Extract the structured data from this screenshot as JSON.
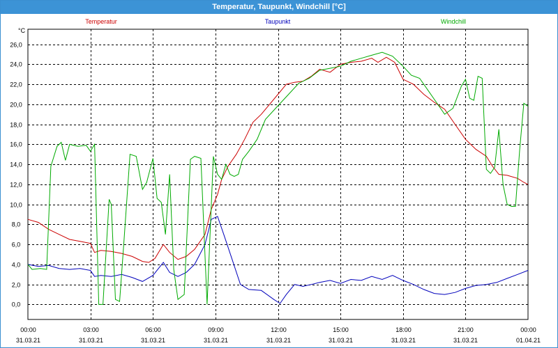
{
  "window": {
    "title": "Temperatur, Taupunkt, Windchill [°C]"
  },
  "chart_data": {
    "type": "line",
    "title": "Temperatur, Taupunkt, Windchill [°C]",
    "ylabel": "°C",
    "ylim": [
      -1.5,
      27.5
    ],
    "yticks": [
      "0,0",
      "2,0",
      "4,0",
      "6,0",
      "8,0",
      "10,0",
      "12,0",
      "14,0",
      "16,0",
      "18,0",
      "20,0",
      "22,0",
      "24,0",
      "26,0"
    ],
    "ytick_values": [
      0,
      2,
      4,
      6,
      8,
      10,
      12,
      14,
      16,
      18,
      20,
      22,
      24,
      26
    ],
    "xlim": [
      0,
      24
    ],
    "xticks": [
      {
        "time": "00:00",
        "date": "31.03.21",
        "h": 0
      },
      {
        "time": "03:00",
        "date": "31.03.21",
        "h": 3
      },
      {
        "time": "06:00",
        "date": "31.03.21",
        "h": 6
      },
      {
        "time": "09:00",
        "date": "31.03.21",
        "h": 9
      },
      {
        "time": "12:00",
        "date": "31.03.21",
        "h": 12
      },
      {
        "time": "15:00",
        "date": "31.03.21",
        "h": 15
      },
      {
        "time": "18:00",
        "date": "31.03.21",
        "h": 18
      },
      {
        "time": "21:00",
        "date": "31.03.21",
        "h": 21
      },
      {
        "time": "00:00",
        "date": "01.04.21",
        "h": 24
      }
    ],
    "grid": true,
    "legend_position": "top",
    "series": [
      {
        "name": "Temperatur",
        "color": "#cc0000",
        "points": [
          [
            0,
            8.5
          ],
          [
            0.5,
            8.2
          ],
          [
            1.0,
            7.5
          ],
          [
            1.5,
            7.0
          ],
          [
            2.0,
            6.5
          ],
          [
            2.5,
            6.3
          ],
          [
            3.0,
            6.1
          ],
          [
            3.2,
            5.2
          ],
          [
            3.5,
            5.4
          ],
          [
            4.0,
            5.3
          ],
          [
            4.5,
            5.1
          ],
          [
            5.0,
            4.8
          ],
          [
            5.5,
            4.3
          ],
          [
            5.8,
            4.2
          ],
          [
            6.1,
            4.6
          ],
          [
            6.5,
            6.0
          ],
          [
            6.8,
            5.2
          ],
          [
            7.2,
            4.5
          ],
          [
            7.6,
            4.8
          ],
          [
            8.0,
            5.5
          ],
          [
            8.5,
            7.0
          ],
          [
            8.8,
            9.5
          ],
          [
            9.1,
            11.0
          ],
          [
            9.3,
            12.5
          ],
          [
            9.6,
            13.8
          ],
          [
            10.0,
            15.0
          ],
          [
            10.4,
            16.5
          ],
          [
            10.8,
            18.2
          ],
          [
            11.2,
            19.0
          ],
          [
            11.6,
            20.0
          ],
          [
            12.0,
            21.0
          ],
          [
            12.4,
            22.0
          ],
          [
            12.8,
            22.2
          ],
          [
            13.2,
            22.3
          ],
          [
            13.6,
            22.8
          ],
          [
            14.0,
            23.5
          ],
          [
            14.5,
            23.2
          ],
          [
            15.0,
            24.0
          ],
          [
            15.5,
            24.2
          ],
          [
            16.0,
            24.3
          ],
          [
            16.5,
            24.6
          ],
          [
            16.8,
            24.2
          ],
          [
            17.2,
            24.7
          ],
          [
            17.6,
            24.2
          ],
          [
            18.0,
            22.5
          ],
          [
            18.5,
            22.0
          ],
          [
            19.0,
            21.0
          ],
          [
            19.5,
            20.2
          ],
          [
            20.0,
            19.5
          ],
          [
            20.5,
            18.0
          ],
          [
            21.0,
            16.5
          ],
          [
            21.5,
            15.5
          ],
          [
            22.0,
            14.8
          ],
          [
            22.3,
            13.8
          ],
          [
            22.6,
            13.0
          ],
          [
            23.0,
            12.9
          ],
          [
            23.5,
            12.6
          ],
          [
            23.8,
            12.2
          ],
          [
            24.0,
            12.0
          ]
        ]
      },
      {
        "name": "Taupunkt",
        "color": "#0000bb",
        "points": [
          [
            0,
            4.0
          ],
          [
            0.5,
            3.8
          ],
          [
            1.0,
            3.9
          ],
          [
            1.5,
            3.6
          ],
          [
            2.0,
            3.5
          ],
          [
            2.5,
            3.6
          ],
          [
            3.0,
            3.4
          ],
          [
            3.2,
            2.8
          ],
          [
            3.5,
            2.9
          ],
          [
            4.0,
            2.8
          ],
          [
            4.5,
            3.0
          ],
          [
            5.0,
            2.7
          ],
          [
            5.5,
            2.3
          ],
          [
            6.0,
            2.9
          ],
          [
            6.5,
            4.2
          ],
          [
            6.8,
            3.2
          ],
          [
            7.2,
            2.8
          ],
          [
            7.6,
            3.2
          ],
          [
            8.0,
            4.0
          ],
          [
            8.5,
            6.0
          ],
          [
            8.8,
            8.5
          ],
          [
            9.1,
            8.8
          ],
          [
            9.4,
            7.0
          ],
          [
            9.8,
            4.5
          ],
          [
            10.2,
            2.0
          ],
          [
            10.6,
            1.5
          ],
          [
            11.2,
            1.4
          ],
          [
            11.8,
            0.5
          ],
          [
            12.1,
            0.1
          ],
          [
            12.4,
            1.0
          ],
          [
            12.8,
            2.0
          ],
          [
            13.2,
            1.8
          ],
          [
            13.6,
            2.0
          ],
          [
            14.0,
            2.2
          ],
          [
            14.5,
            2.4
          ],
          [
            15.0,
            2.1
          ],
          [
            15.5,
            2.5
          ],
          [
            16.0,
            2.4
          ],
          [
            16.5,
            2.8
          ],
          [
            17.0,
            2.5
          ],
          [
            17.5,
            2.9
          ],
          [
            18.0,
            2.4
          ],
          [
            18.5,
            2.0
          ],
          [
            19.0,
            1.5
          ],
          [
            19.5,
            1.1
          ],
          [
            20.0,
            1.0
          ],
          [
            20.5,
            1.2
          ],
          [
            21.0,
            1.6
          ],
          [
            21.5,
            1.9
          ],
          [
            22.0,
            2.0
          ],
          [
            22.5,
            2.2
          ],
          [
            23.0,
            2.6
          ],
          [
            23.5,
            3.0
          ],
          [
            24.0,
            3.4
          ]
        ]
      },
      {
        "name": "Windchill",
        "color": "#00aa00",
        "points": [
          [
            0,
            4.0
          ],
          [
            0.2,
            3.5
          ],
          [
            0.6,
            3.6
          ],
          [
            0.9,
            3.5
          ],
          [
            1.1,
            13.8
          ],
          [
            1.4,
            15.8
          ],
          [
            1.6,
            16.2
          ],
          [
            1.8,
            14.4
          ],
          [
            2.0,
            16.0
          ],
          [
            2.4,
            15.8
          ],
          [
            2.8,
            15.9
          ],
          [
            3.0,
            15.3
          ],
          [
            3.2,
            16.0
          ],
          [
            3.4,
            0.0
          ],
          [
            3.6,
            0.0
          ],
          [
            3.9,
            10.5
          ],
          [
            4.0,
            10.0
          ],
          [
            4.2,
            0.5
          ],
          [
            4.4,
            0.3
          ],
          [
            4.6,
            6.0
          ],
          [
            4.9,
            15.0
          ],
          [
            5.2,
            14.8
          ],
          [
            5.5,
            11.5
          ],
          [
            5.7,
            12.2
          ],
          [
            6.0,
            14.6
          ],
          [
            6.2,
            10.6
          ],
          [
            6.4,
            10.2
          ],
          [
            6.6,
            7.0
          ],
          [
            6.8,
            13.0
          ],
          [
            7.0,
            3.5
          ],
          [
            7.2,
            0.5
          ],
          [
            7.5,
            1.0
          ],
          [
            7.8,
            14.5
          ],
          [
            8.0,
            14.8
          ],
          [
            8.3,
            14.6
          ],
          [
            8.6,
            0.0
          ],
          [
            8.9,
            14.8
          ],
          [
            9.1,
            13.0
          ],
          [
            9.3,
            12.5
          ],
          [
            9.5,
            14.0
          ],
          [
            9.7,
            13.0
          ],
          [
            9.9,
            12.8
          ],
          [
            10.1,
            13.0
          ],
          [
            10.3,
            14.5
          ],
          [
            10.6,
            15.3
          ],
          [
            11.0,
            16.5
          ],
          [
            11.4,
            18.5
          ],
          [
            11.8,
            19.4
          ],
          [
            12.2,
            20.3
          ],
          [
            12.6,
            21.2
          ],
          [
            13.0,
            22.1
          ],
          [
            13.5,
            22.6
          ],
          [
            14.0,
            23.4
          ],
          [
            14.5,
            23.6
          ],
          [
            15.0,
            23.8
          ],
          [
            15.5,
            24.3
          ],
          [
            16.0,
            24.6
          ],
          [
            16.5,
            24.9
          ],
          [
            17.0,
            25.2
          ],
          [
            17.5,
            24.8
          ],
          [
            18.0,
            23.8
          ],
          [
            18.4,
            22.9
          ],
          [
            18.8,
            22.6
          ],
          [
            19.2,
            21.4
          ],
          [
            19.6,
            20.2
          ],
          [
            20.0,
            19.0
          ],
          [
            20.4,
            19.6
          ],
          [
            20.8,
            21.8
          ],
          [
            21.0,
            22.5
          ],
          [
            21.2,
            20.6
          ],
          [
            21.4,
            20.4
          ],
          [
            21.6,
            22.8
          ],
          [
            21.8,
            22.6
          ],
          [
            22.0,
            13.5
          ],
          [
            22.2,
            13.1
          ],
          [
            22.4,
            13.7
          ],
          [
            22.6,
            17.5
          ],
          [
            22.8,
            12.0
          ],
          [
            23.0,
            10.0
          ],
          [
            23.2,
            9.8
          ],
          [
            23.4,
            9.8
          ],
          [
            23.6,
            15.5
          ],
          [
            23.8,
            20.1
          ],
          [
            24.0,
            19.8
          ]
        ]
      }
    ]
  }
}
